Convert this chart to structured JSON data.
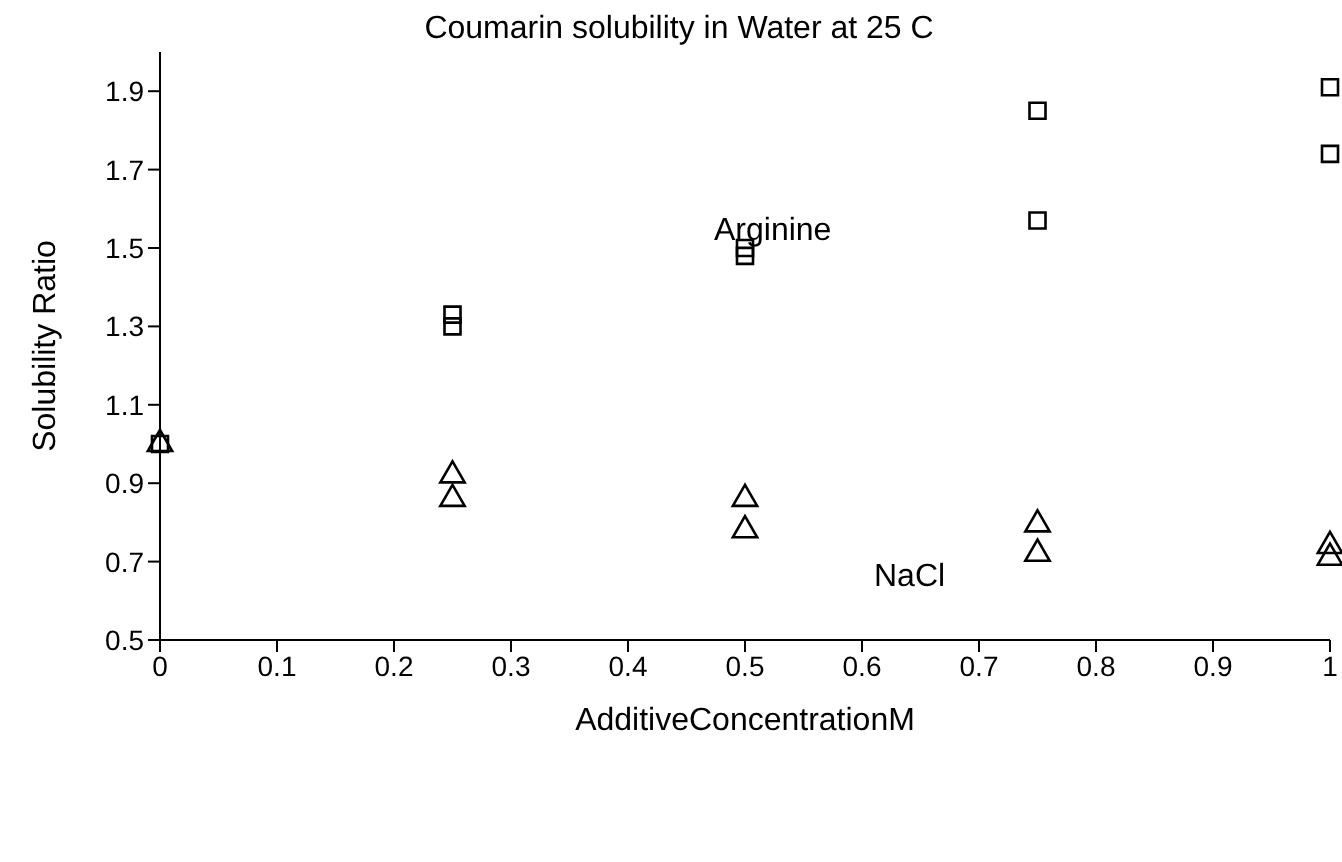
{
  "chart_data": {
    "type": "scatter",
    "title": "Coumarin solubility in Water at 25 C",
    "xlabel": "AdditiveConcentrationM",
    "ylabel": "Solubility Ratio",
    "series": [
      {
        "name": "Arginine",
        "color": "#000000",
        "marker": "square",
        "x": [
          0,
          0.25,
          0.25,
          0.5,
          0.5,
          0.75,
          0.75,
          1,
          1
        ],
        "values": [
          1.0,
          1.33,
          1.3,
          1.5,
          1.48,
          1.85,
          1.57,
          1.91,
          1.74
        ]
      },
      {
        "name": "NaCl",
        "color": "#000000",
        "marker": "triangle",
        "x": [
          0,
          0.25,
          0.25,
          0.5,
          0.5,
          0.75,
          0.75,
          1,
          1
        ],
        "values": [
          1.0,
          0.92,
          0.86,
          0.86,
          0.78,
          0.795,
          0.72,
          0.74,
          0.71
        ]
      }
    ],
    "xlim": [
      0,
      1
    ],
    "xticks": [
      0,
      0.1,
      0.2,
      0.3,
      0.4,
      0.5,
      0.6,
      0.7,
      0.8,
      0.9,
      1
    ],
    "ylim": [
      0.5,
      2.0
    ],
    "yticks": [
      0.5,
      0.7,
      0.9,
      1.1,
      1.3,
      1.5,
      1.7,
      1.9
    ],
    "grid": false,
    "legend": false
  }
}
